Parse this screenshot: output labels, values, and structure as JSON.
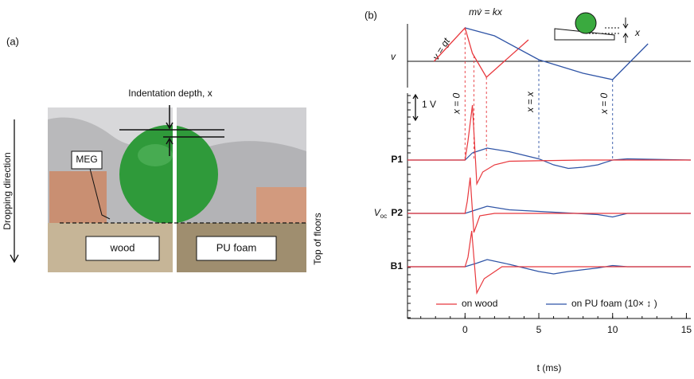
{
  "panel_a": {
    "label": "(a)",
    "indentation_label": "Indentation depth, x",
    "direction_label": "Dropping direction",
    "meg_label": "MEG",
    "left_floor": "wood",
    "right_floor": "PU foam",
    "floor_label": "Top of floors"
  },
  "chart_data": [
    {
      "type": "line",
      "label": "(b)",
      "y_label": "v",
      "annotations": [
        "v = gt",
        "mv̇ = kx"
      ],
      "inset_label": "x",
      "xlim": [
        -3.9,
        15.3
      ],
      "ylim": [
        -3.3,
        4.7
      ],
      "series": [
        {
          "color": "#e8383d",
          "x": [
            -2.1,
            0,
            0.5,
            1.45,
            4.3
          ],
          "values": [
            0,
            4.2,
            1.0,
            -2.0,
            2.7
          ]
        },
        {
          "color": "#2f54a6",
          "x": [
            0,
            2,
            5,
            8,
            10,
            12.4
          ],
          "values": [
            4.2,
            3.2,
            0.2,
            -1.5,
            -2.3,
            2.2
          ]
        }
      ],
      "guides": [
        {
          "x": 0,
          "series": 0,
          "label": "x = 0"
        },
        {
          "x": 0.6,
          "series": 0
        },
        {
          "x": 1.45,
          "series": 0
        },
        {
          "x": 5,
          "series": 1,
          "label": "x = x"
        },
        {
          "x": 10,
          "series": 1,
          "label": "x = 0"
        }
      ]
    },
    {
      "type": "line",
      "y_label": "V",
      "y_label_sub": "oc",
      "x_label": "t (ms)",
      "xlim": [
        -3.9,
        15.3
      ],
      "xticks": [
        0,
        5,
        10,
        15
      ],
      "scale_bar": {
        "label": "1 V",
        "value": 1
      },
      "series": [
        {
          "name": "on wood",
          "color": "#e8383d"
        },
        {
          "name": "on PU foam (10× ↕ )",
          "color": "#2f54a6"
        }
      ],
      "traces": [
        {
          "label": "P1",
          "series": [
            {
              "x": [
                -3.9,
                0,
                0.2,
                0.5,
                0.8,
                1.2,
                2,
                3,
                5,
                8,
                12,
                15.3
              ],
              "values": [
                0,
                0,
                0.8,
                2.3,
                -1.0,
                -0.5,
                -0.2,
                -0.05,
                -0.03,
                0,
                0,
                0
              ]
            },
            {
              "x": [
                -3.9,
                0,
                0.5,
                1,
                1.5,
                3,
                5,
                6,
                7,
                8,
                9,
                10,
                11,
                15.3
              ],
              "values": [
                0,
                0,
                0.3,
                0.4,
                0.5,
                0.35,
                0.05,
                -0.2,
                -0.35,
                -0.3,
                -0.2,
                0,
                0.05,
                0
              ]
            }
          ]
        },
        {
          "label": "P2",
          "series": [
            {
              "x": [
                -3.9,
                0,
                0.15,
                0.35,
                0.6,
                1,
                2,
                15.3
              ],
              "values": [
                0,
                0,
                0.5,
                1.5,
                -0.8,
                -0.1,
                0,
                0
              ]
            },
            {
              "x": [
                -3.9,
                0,
                0.5,
                1.5,
                3,
                6,
                9,
                10,
                11,
                15.3
              ],
              "values": [
                0,
                0,
                0.1,
                0.3,
                0.15,
                0.05,
                -0.05,
                -0.15,
                0,
                0
              ]
            }
          ]
        },
        {
          "label": "B1",
          "series": [
            {
              "x": [
                -3.9,
                0,
                0.2,
                0.45,
                0.8,
                1.3,
                2.5,
                15.3
              ],
              "values": [
                0,
                0,
                0.4,
                1.5,
                -1.1,
                -0.5,
                0,
                0
              ]
            },
            {
              "x": [
                -3.9,
                0,
                0.8,
                1.5,
                3,
                5,
                6,
                7,
                9,
                10,
                11,
                15.3
              ],
              "values": [
                0,
                0,
                0.15,
                0.3,
                0.1,
                -0.2,
                -0.3,
                -0.2,
                -0.05,
                0.05,
                0,
                0
              ]
            }
          ]
        }
      ]
    }
  ]
}
